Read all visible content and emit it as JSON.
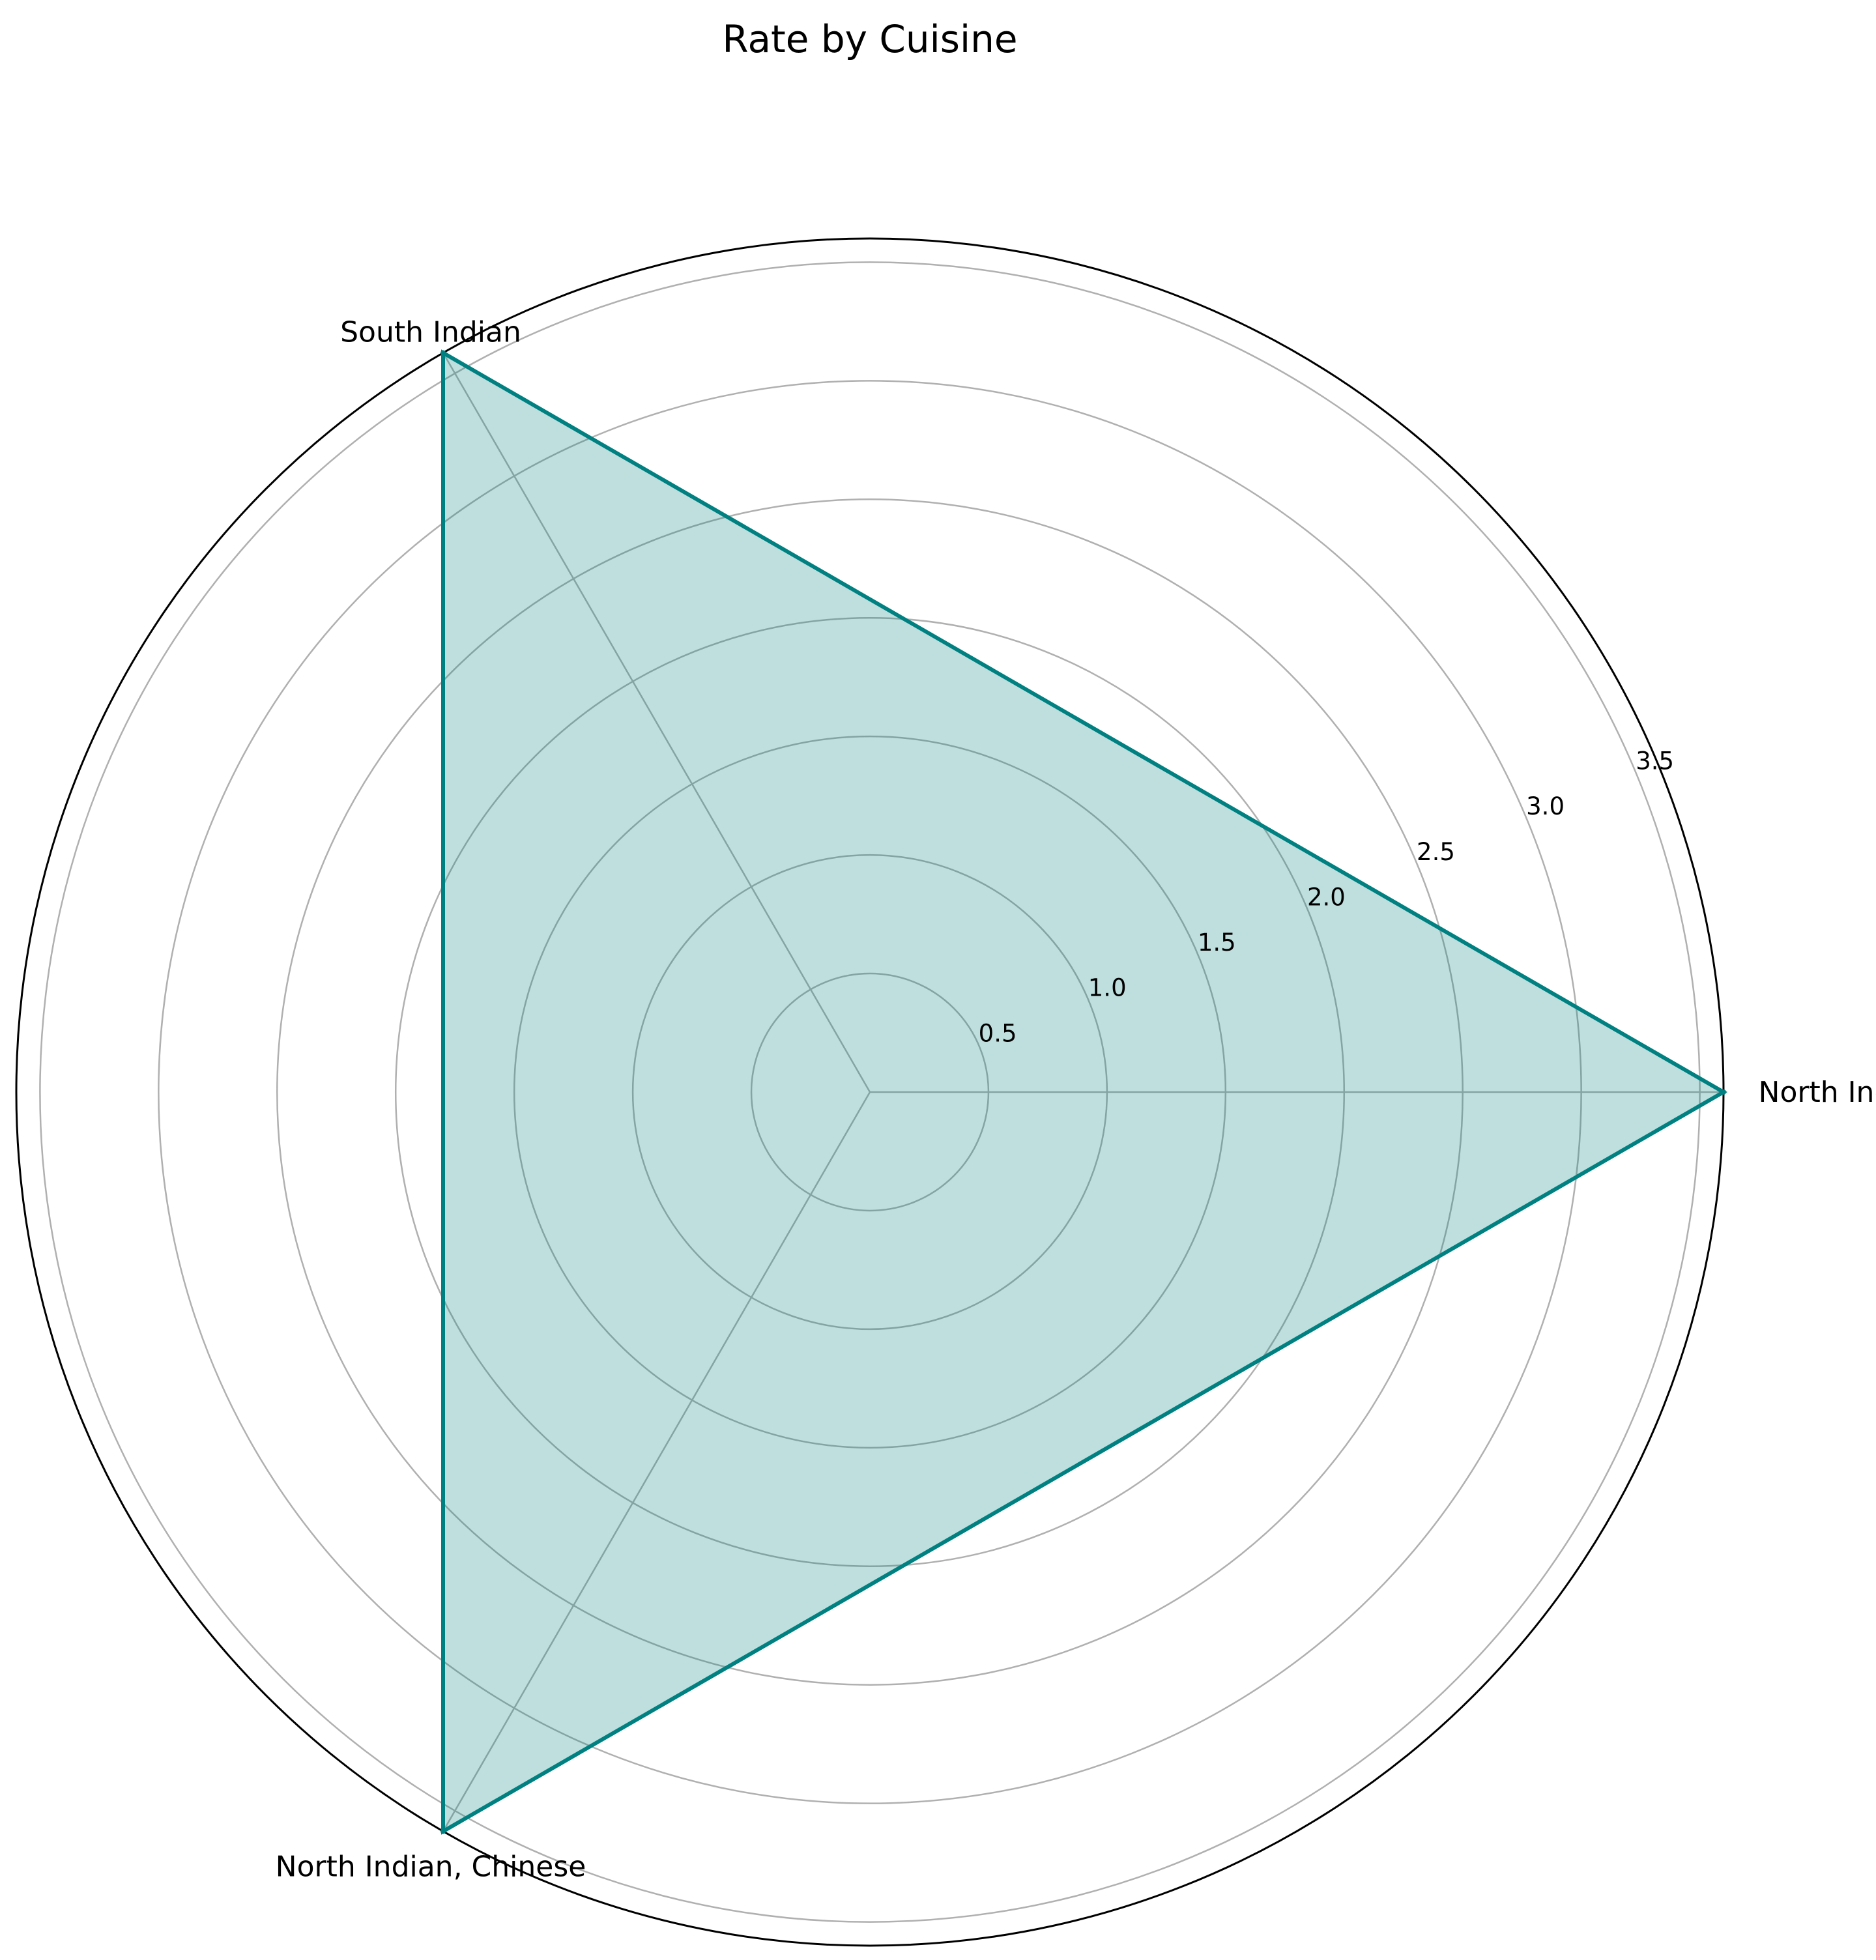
{
  "chart_data": {
    "type": "radar",
    "title": "Rate by Cuisine",
    "categories": [
      "North Indian",
      "South Indian",
      "North Indian, Chinese"
    ],
    "series": [
      {
        "values": [
          3.6,
          3.6,
          3.6
        ]
      }
    ],
    "rlim": [
      0,
      3.6
    ],
    "rticks": [
      0.5,
      1.0,
      1.5,
      2.0,
      2.5,
      3.0,
      3.5
    ],
    "rtick_labels": [
      "0.5",
      "1.0",
      "1.5",
      "2.0",
      "2.5",
      "3.0",
      "3.5"
    ],
    "grid": true,
    "colors": {
      "line": "#008080",
      "fill": "#008080",
      "grid": "#b0b0b0",
      "frame": "#000000"
    }
  }
}
